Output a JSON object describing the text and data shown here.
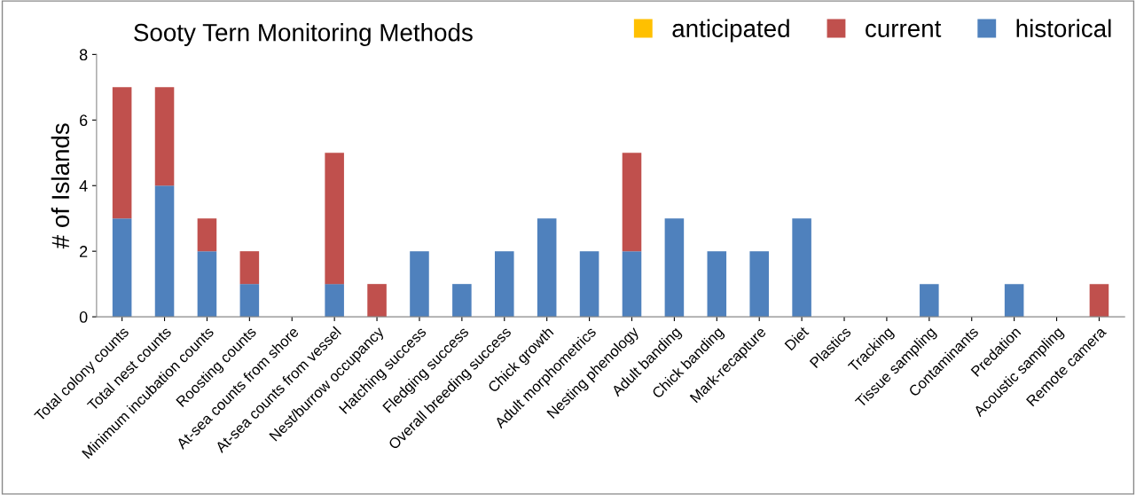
{
  "chart_data": {
    "type": "bar",
    "title": "Sooty Tern Monitoring Methods",
    "ylabel": "# of Islands",
    "categories": [
      "Total colony counts",
      "Total nest counts",
      "Minimum incubation counts",
      "Roosting counts",
      "At-sea counts from shore",
      "At-sea counts from vessel",
      "Nest/burrow occupancy",
      "Hatching success",
      "Fledging success",
      "Overall breeding success",
      "Chick growth",
      "Adult morphometrics",
      "Nesting phenology",
      "Adult banding",
      "Chick banding",
      "Mark-recapture",
      "Diet",
      "Plastics",
      "Tracking",
      "Tissue sampling",
      "Contaminants",
      "Predation",
      "Acoustic sampling",
      "Remote camera"
    ],
    "series": [
      {
        "name": "historical",
        "color": "#4f81bd",
        "values": [
          3,
          4,
          2,
          1,
          0,
          1,
          0,
          2,
          1,
          2,
          3,
          2,
          2,
          3,
          2,
          2,
          3,
          0,
          0,
          1,
          0,
          1,
          0,
          0
        ]
      },
      {
        "name": "current",
        "color": "#c0504d",
        "values": [
          4,
          3,
          1,
          1,
          0,
          4,
          1,
          0,
          0,
          0,
          0,
          0,
          3,
          0,
          0,
          0,
          0,
          0,
          0,
          0,
          0,
          0,
          0,
          1
        ]
      },
      {
        "name": "anticipated",
        "color": "#ffc000",
        "values": [
          0,
          0,
          0,
          0,
          0,
          0,
          0,
          0,
          0,
          0,
          0,
          0,
          0,
          0,
          0,
          0,
          0,
          0,
          0,
          0,
          0,
          0,
          0,
          0
        ]
      }
    ],
    "stacked": true,
    "ylim": [
      0,
      8
    ],
    "yticks": [
      0,
      2,
      4,
      6,
      8
    ],
    "grid": false,
    "legend": "top right"
  }
}
